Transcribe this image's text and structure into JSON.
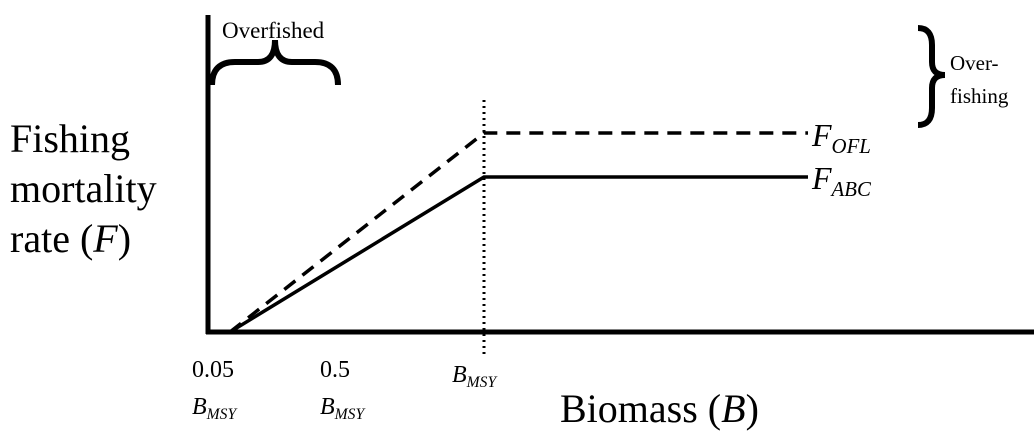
{
  "labels": {
    "overfished": "Overfished",
    "overfishing": [
      "Over-",
      "fishing"
    ],
    "f_ofl": {
      "symbol": "F",
      "subscript": "OFL"
    },
    "f_abc": {
      "symbol": "F",
      "subscript": "ABC"
    },
    "y_axis_label": {
      "lines": [
        "Fishing",
        "mortality"
      ],
      "prefix": "rate (",
      "variable": "F",
      "suffix": ")"
    },
    "x_axis_label": {
      "prefix": "Biomass (",
      "variable": "B",
      "suffix": ")"
    },
    "x_ticks": [
      {
        "fraction": "0.05",
        "symbol": "B",
        "subscript": "MSY"
      },
      {
        "fraction": "0.5",
        "symbol": "B",
        "subscript": "MSY"
      },
      {
        "symbol": "B",
        "subscript": "MSY"
      }
    ]
  }
}
